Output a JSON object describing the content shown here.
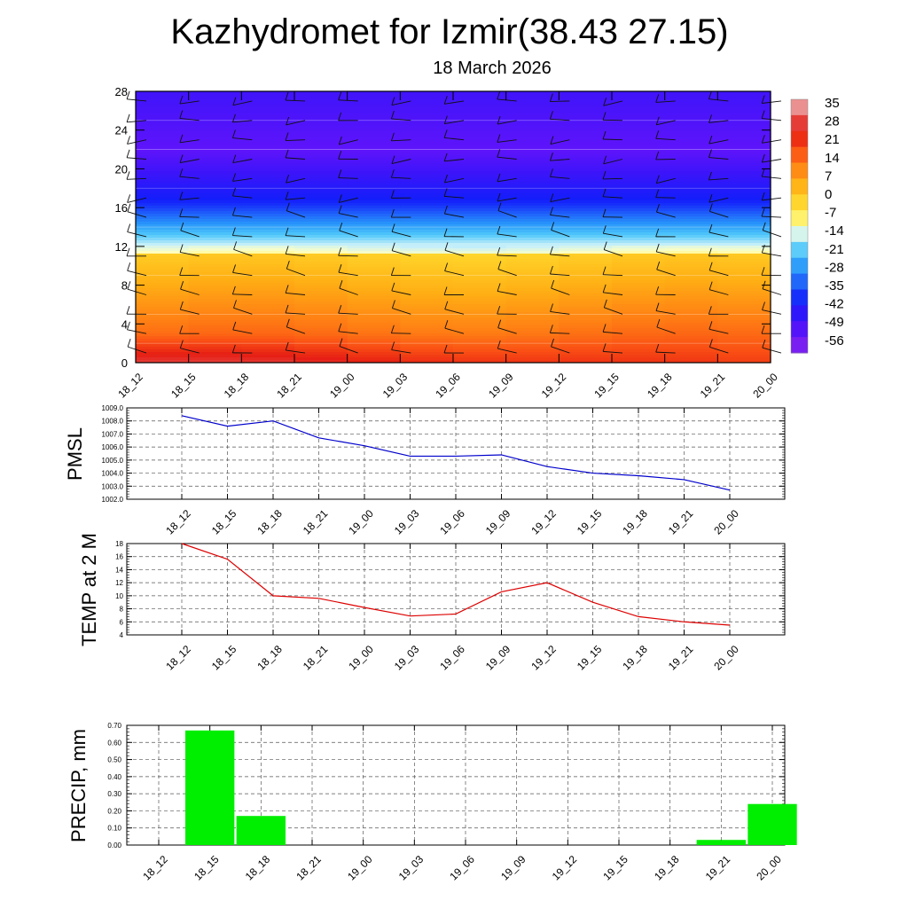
{
  "title": "Kazhydromet for Izmir(38.43 27.15)",
  "subtitle": "18 March 2026",
  "time_labels": [
    "18_12",
    "18_15",
    "18_18",
    "18_21",
    "19_00",
    "19_03",
    "19_06",
    "19_09",
    "19_12",
    "19_15",
    "19_18",
    "19_21",
    "20_00"
  ],
  "colors": {
    "pmsl_line": "#0000cc",
    "temp_line": "#dd0000",
    "precip_bar": "#00ee00",
    "grid": "#555555"
  },
  "chart_data": [
    {
      "type": "heatmap",
      "name": "temperature-cross-section",
      "x_tick_labels": [
        "18_12",
        "18_15",
        "18_18",
        "18_21",
        "19_00",
        "19_03",
        "19_06",
        "19_09",
        "19_12",
        "19_15",
        "19_18",
        "19_21",
        "20_00"
      ],
      "y_ticks": [
        0,
        4,
        8,
        12,
        16,
        20,
        24,
        28
      ],
      "ylim": [
        0,
        28
      ],
      "colorbar_labels": [
        "35",
        "28",
        "21",
        "14",
        "7",
        "0",
        "-7",
        "-14",
        "-21",
        "-28",
        "-35",
        "-42",
        "-49",
        "-56"
      ],
      "colorbar_range": [
        -63,
        42
      ],
      "wind_barbs": true
    },
    {
      "type": "line",
      "name": "pmsl",
      "ylabel": "PMSL",
      "categories": [
        "18_12",
        "18_15",
        "18_18",
        "18_21",
        "19_00",
        "19_03",
        "19_06",
        "19_09",
        "19_12",
        "19_15",
        "19_18",
        "19_21",
        "20_00"
      ],
      "values": [
        1008.4,
        1007.6,
        1008.0,
        1006.7,
        1006.1,
        1005.3,
        1005.3,
        1005.4,
        1004.5,
        1004.0,
        1003.8,
        1003.5,
        1002.7
      ],
      "ylim": [
        1002.0,
        1009.0
      ],
      "y_tick_labels": [
        "1009.0",
        "1008.0",
        "1007.0",
        "1006.0",
        "1005.0",
        "1004.0",
        "1003.0",
        "1002.0"
      ]
    },
    {
      "type": "line",
      "name": "temp-2m",
      "ylabel": "TEMP at 2 M",
      "categories": [
        "18_12",
        "18_15",
        "18_18",
        "18_21",
        "19_00",
        "19_03",
        "19_06",
        "19_09",
        "19_12",
        "19_15",
        "19_18",
        "19_21",
        "20_00"
      ],
      "values": [
        18.0,
        15.6,
        10.0,
        9.6,
        8.2,
        6.9,
        7.2,
        10.6,
        12.0,
        9.0,
        6.8,
        6.0,
        5.5
      ],
      "ylim": [
        4,
        18
      ],
      "y_tick_labels": [
        "18",
        "16",
        "14",
        "12",
        "10",
        "8",
        "6",
        "4"
      ]
    },
    {
      "type": "bar",
      "name": "precip",
      "ylabel": "PRECIP, mm",
      "categories": [
        "18_12",
        "18_15",
        "18_18",
        "18_21",
        "19_00",
        "19_03",
        "19_06",
        "19_09",
        "19_12",
        "19_15",
        "19_18",
        "19_21",
        "20_00"
      ],
      "values": [
        0,
        0.67,
        0.17,
        0,
        0,
        0,
        0,
        0,
        0,
        0,
        0,
        0.03,
        0.24
      ],
      "ylim": [
        0,
        0.7
      ],
      "y_tick_labels": [
        "0.70",
        "0.60",
        "0.50",
        "0.40",
        "0.30",
        "0.20",
        "0.10",
        "0.00"
      ]
    }
  ]
}
